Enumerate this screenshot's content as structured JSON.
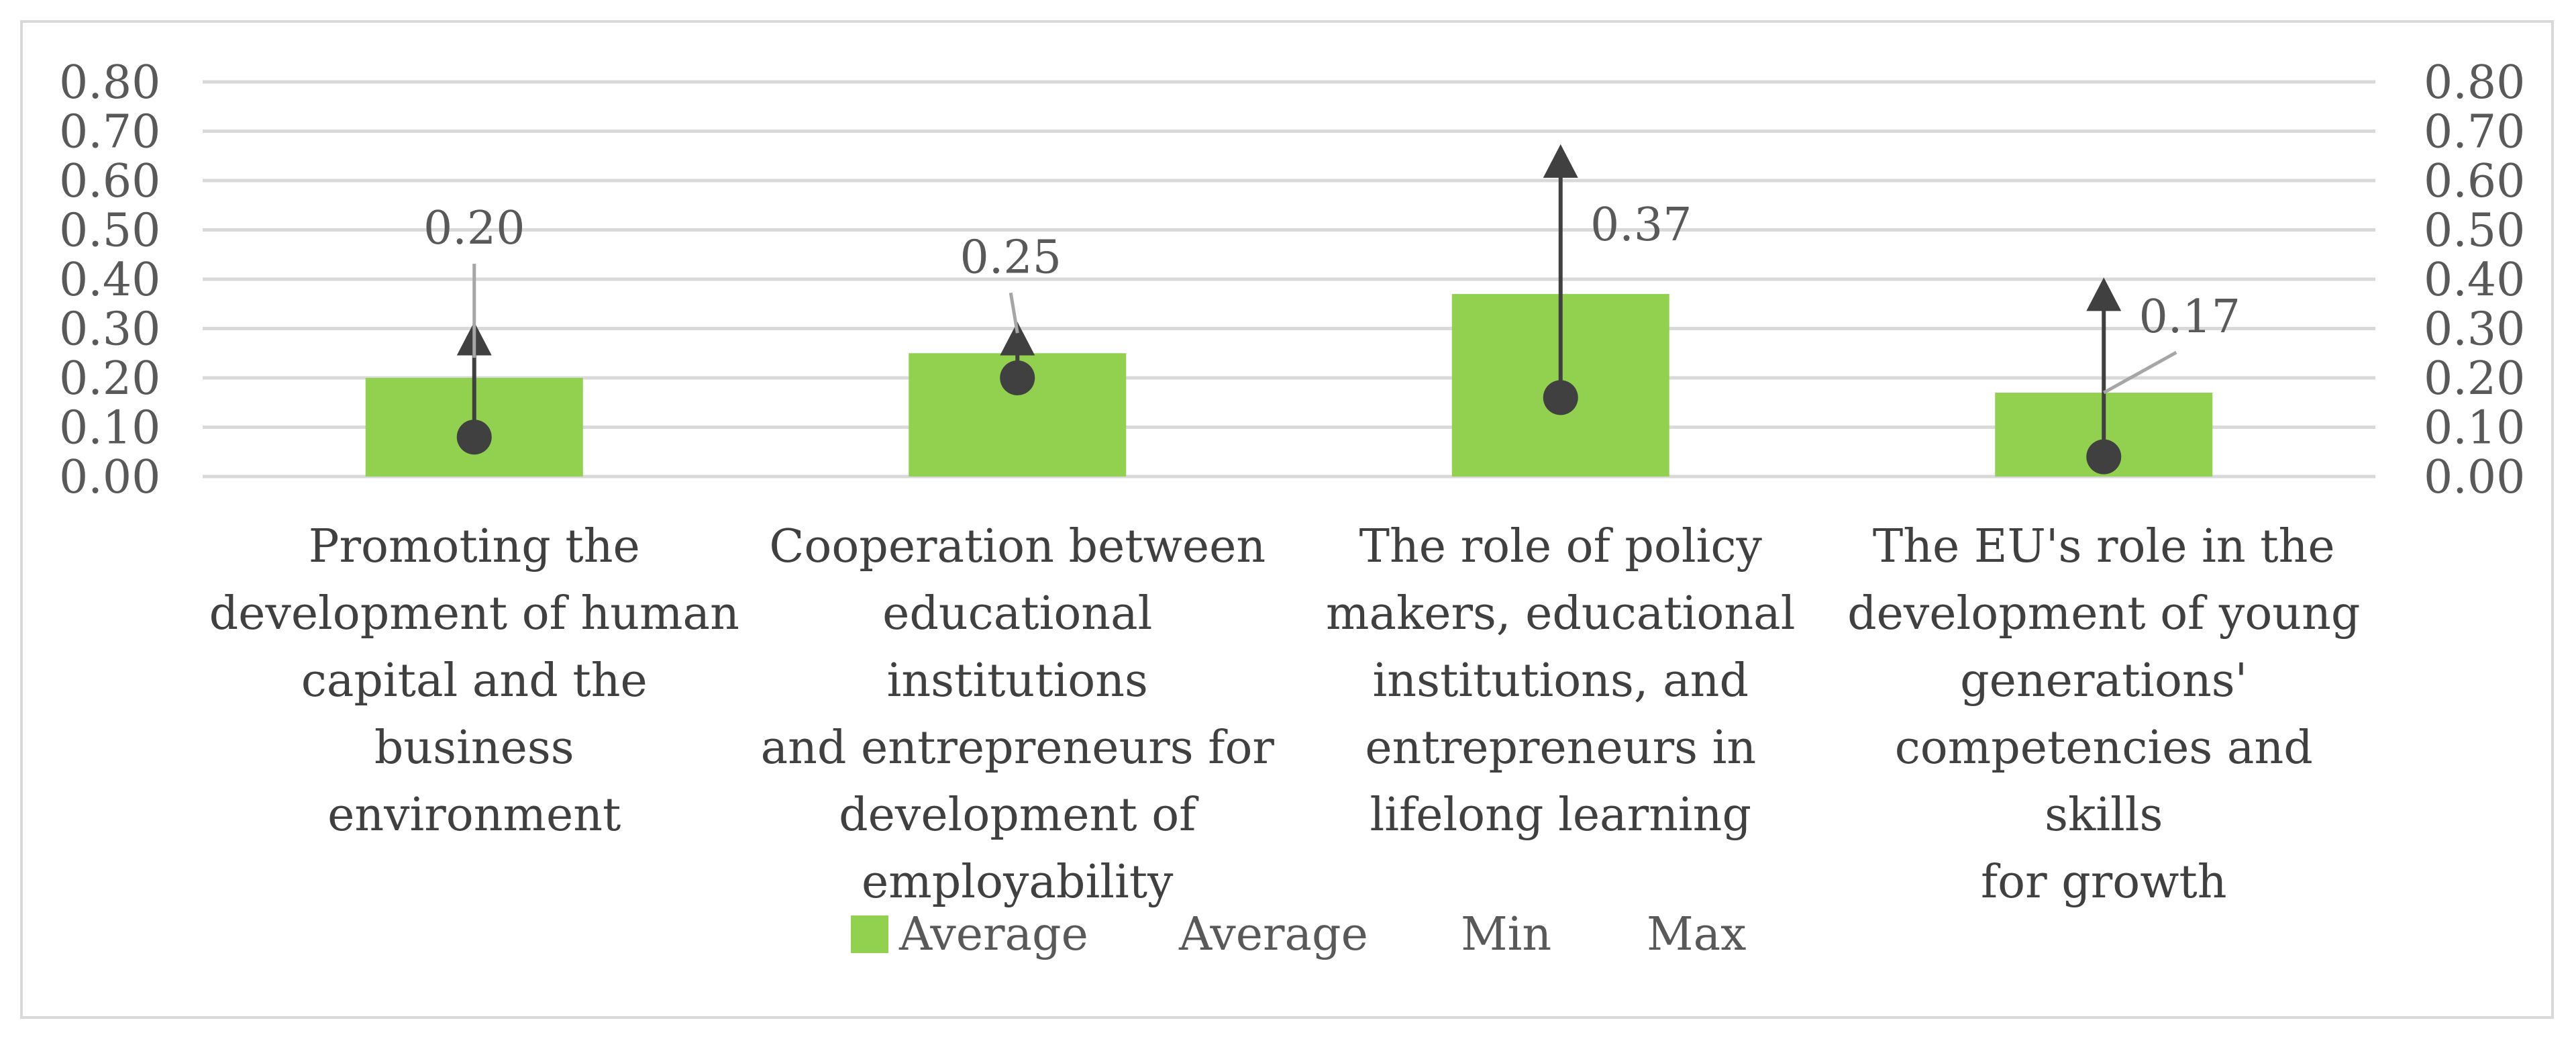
{
  "colors": {
    "bar": "#92d050",
    "error_line": "#404040",
    "marker": "#404040",
    "grid": "#d9d9d9",
    "text": "#595959"
  },
  "chart_data": {
    "type": "bar",
    "title": "",
    "xlabel": "",
    "ylabel": "",
    "ylim": [
      0,
      0.8
    ],
    "y_ticks": [
      "0.00",
      "0.10",
      "0.20",
      "0.30",
      "0.40",
      "0.50",
      "0.60",
      "0.70",
      "0.80"
    ],
    "secondary_y_ticks": [
      "0.00",
      "0.10",
      "0.20",
      "0.30",
      "0.40",
      "0.50",
      "0.60",
      "0.70",
      "0.80"
    ],
    "grid": true,
    "legend_position": "bottom",
    "categories": [
      "Promoting the development of human capital and the business environment",
      "Cooperation between educational institutions and entrepreneurs for development of employability",
      "The role of policy makers, educational institutions, and entrepreneurs in lifelong learning",
      "The EU's role in the development of young generations' competencies and skills for growth"
    ],
    "category_label_lines": [
      [
        "Promoting the",
        "development of human",
        "capital and the business",
        "environment"
      ],
      [
        "Cooperation between",
        "educational institutions",
        "and entrepreneurs for",
        "development of",
        "employability"
      ],
      [
        "The role of policy",
        "makers, educational",
        "institutions, and",
        "entrepreneurs in",
        "lifelong learning"
      ],
      [
        "The EU's role in the",
        "development of young",
        "generations'",
        "competencies and skills",
        "for growth"
      ]
    ],
    "series": [
      {
        "name": "Average",
        "kind": "bar",
        "values": [
          0.2,
          0.25,
          0.37,
          0.17
        ]
      },
      {
        "name": "Average",
        "kind": "line",
        "values": [
          0.2,
          0.25,
          0.37,
          0.17
        ]
      },
      {
        "name": "Min",
        "kind": "line",
        "values": [
          0.08,
          0.2,
          0.16,
          0.04
        ]
      },
      {
        "name": "Max",
        "kind": "line",
        "values": [
          0.3,
          0.3,
          0.66,
          0.39
        ]
      }
    ],
    "data_labels": [
      "0.20",
      "0.25",
      "0.37",
      "0.17"
    ]
  },
  "legend": {
    "items": [
      "Average",
      "Average",
      "Min",
      "Max"
    ]
  }
}
